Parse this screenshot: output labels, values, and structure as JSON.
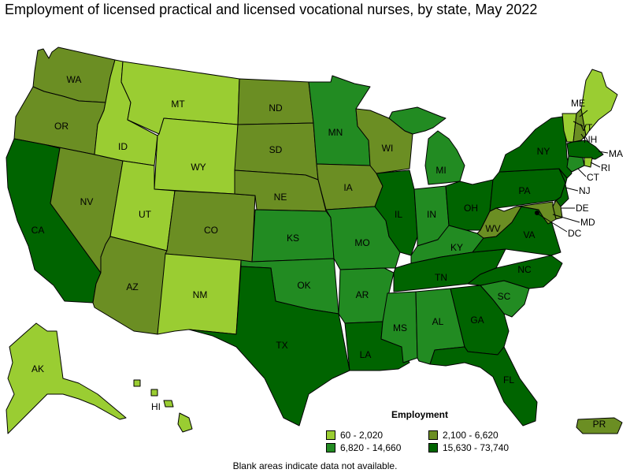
{
  "title": "Employment of licensed practical and licensed vocational nurses, by state, May 2022",
  "legend": {
    "title": "Employment",
    "items": [
      {
        "label": "60 - 2,020",
        "color": "#9acd32"
      },
      {
        "label": "2,100 - 6,620",
        "color": "#6b8e23"
      },
      {
        "label": "6,820 - 14,660",
        "color": "#228b22"
      },
      {
        "label": "15,630 - 73,740",
        "color": "#006400"
      }
    ]
  },
  "footnote": "Blank areas indicate data not available.",
  "states": [
    {
      "abbr": "WA",
      "bin": 1
    },
    {
      "abbr": "OR",
      "bin": 1
    },
    {
      "abbr": "CA",
      "bin": 3
    },
    {
      "abbr": "NV",
      "bin": 1
    },
    {
      "abbr": "ID",
      "bin": 0
    },
    {
      "abbr": "MT",
      "bin": 0
    },
    {
      "abbr": "WY",
      "bin": 0
    },
    {
      "abbr": "UT",
      "bin": 0
    },
    {
      "abbr": "AZ",
      "bin": 1
    },
    {
      "abbr": "CO",
      "bin": 1
    },
    {
      "abbr": "NM",
      "bin": 0
    },
    {
      "abbr": "ND",
      "bin": 1
    },
    {
      "abbr": "SD",
      "bin": 1
    },
    {
      "abbr": "NE",
      "bin": 1
    },
    {
      "abbr": "KS",
      "bin": 2
    },
    {
      "abbr": "OK",
      "bin": 2
    },
    {
      "abbr": "TX",
      "bin": 3
    },
    {
      "abbr": "MN",
      "bin": 2
    },
    {
      "abbr": "IA",
      "bin": 1
    },
    {
      "abbr": "MO",
      "bin": 2
    },
    {
      "abbr": "AR",
      "bin": 2
    },
    {
      "abbr": "LA",
      "bin": 3
    },
    {
      "abbr": "WI",
      "bin": 1
    },
    {
      "abbr": "IL",
      "bin": 3
    },
    {
      "abbr": "MI",
      "bin": 2
    },
    {
      "abbr": "IN",
      "bin": 2
    },
    {
      "abbr": "OH",
      "bin": 3
    },
    {
      "abbr": "KY",
      "bin": 2
    },
    {
      "abbr": "TN",
      "bin": 3
    },
    {
      "abbr": "MS",
      "bin": 2
    },
    {
      "abbr": "AL",
      "bin": 2
    },
    {
      "abbr": "GA",
      "bin": 3
    },
    {
      "abbr": "FL",
      "bin": 3
    },
    {
      "abbr": "SC",
      "bin": 2
    },
    {
      "abbr": "NC",
      "bin": 3
    },
    {
      "abbr": "VA",
      "bin": 3
    },
    {
      "abbr": "WV",
      "bin": 1
    },
    {
      "abbr": "PA",
      "bin": 3
    },
    {
      "abbr": "NY",
      "bin": 3
    },
    {
      "abbr": "VT",
      "bin": 0
    },
    {
      "abbr": "NH",
      "bin": 1
    },
    {
      "abbr": "ME",
      "bin": 0
    },
    {
      "abbr": "MA",
      "bin": 3
    },
    {
      "abbr": "RI",
      "bin": 0
    },
    {
      "abbr": "CT",
      "bin": 2
    },
    {
      "abbr": "NJ",
      "bin": 3
    },
    {
      "abbr": "DE",
      "bin": 1
    },
    {
      "abbr": "MD",
      "bin": 1
    },
    {
      "abbr": "DC",
      "bin": 3
    },
    {
      "abbr": "AK",
      "bin": 0
    },
    {
      "abbr": "HI",
      "bin": 0
    },
    {
      "abbr": "PR",
      "bin": 1
    }
  ]
}
